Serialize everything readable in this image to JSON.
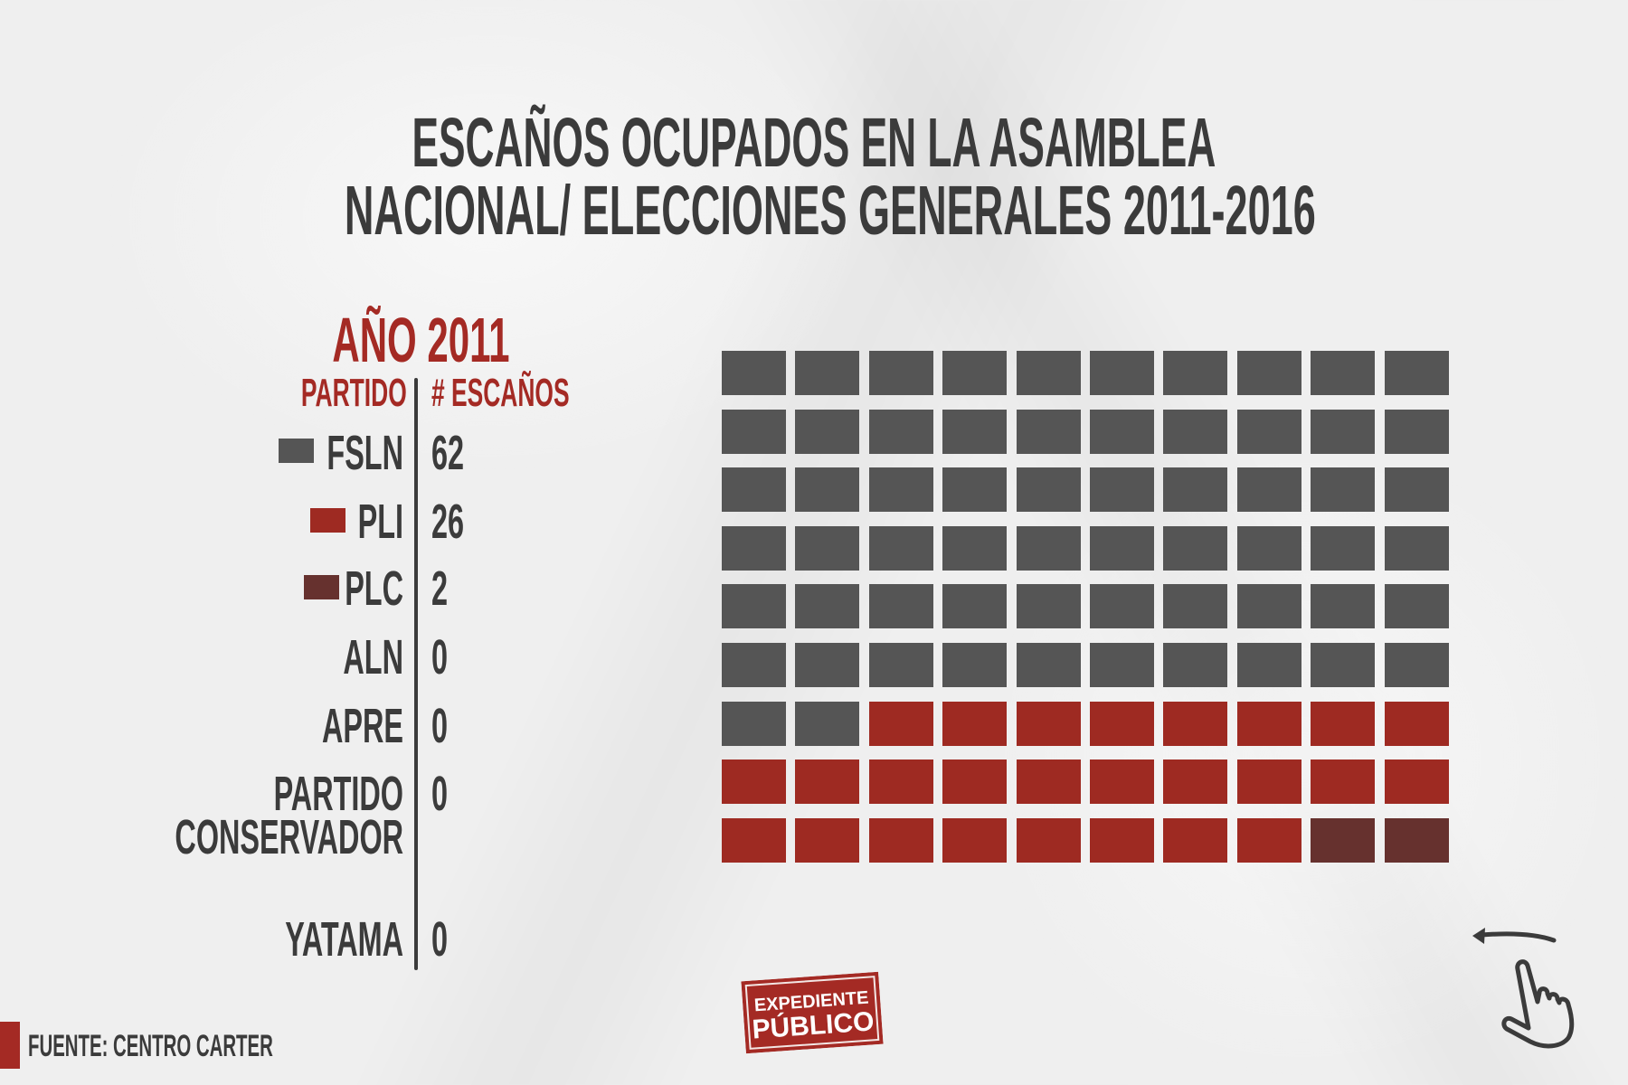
{
  "title": {
    "line1": "ESCAÑOS OCUPADOS EN LA ASAMBLEA",
    "line2": "NACIONAL/ ELECCIONES GENERALES 2011-2016"
  },
  "year_label": "AÑO 2011",
  "table": {
    "header_party": "PARTIDO",
    "header_seats": "# ESCAÑOS",
    "rows": [
      {
        "party": "FSLN",
        "seats": "62",
        "color": "#555555"
      },
      {
        "party": "PLI",
        "seats": "26",
        "color": "#9e2a22"
      },
      {
        "party": "PLC",
        "seats": "2",
        "color": "#66312e"
      },
      {
        "party": "ALN",
        "seats": "0"
      },
      {
        "party": "APRE",
        "seats": "0"
      },
      {
        "party_line1": "PARTIDO",
        "party_line2": "CONSERVADOR",
        "seats": "0"
      },
      {
        "party": "YATAMA",
        "seats": "0"
      }
    ]
  },
  "source": "FUENTE: CENTRO CARTER",
  "logo": {
    "line1": "EXPEDIENTE",
    "line2": "PÚBLICO"
  },
  "swipe_icon": "swipe-left-hand-icon",
  "chart_data": {
    "type": "waffle",
    "title": "ESCAÑOS OCUPADOS EN LA ASAMBLEA NACIONAL/ ELECCIONES GENERALES 2011-2016",
    "subtitle": "AÑO 2011",
    "columns": 10,
    "series": [
      {
        "name": "FSLN",
        "value": 62,
        "color": "#555555"
      },
      {
        "name": "PLI",
        "value": 26,
        "color": "#9e2a22"
      },
      {
        "name": "PLC",
        "value": 2,
        "color": "#66312e"
      },
      {
        "name": "ALN",
        "value": 0
      },
      {
        "name": "APRE",
        "value": 0
      },
      {
        "name": "PARTIDO CONSERVADOR",
        "value": 0
      },
      {
        "name": "YATAMA",
        "value": 0
      }
    ],
    "total": 90
  }
}
